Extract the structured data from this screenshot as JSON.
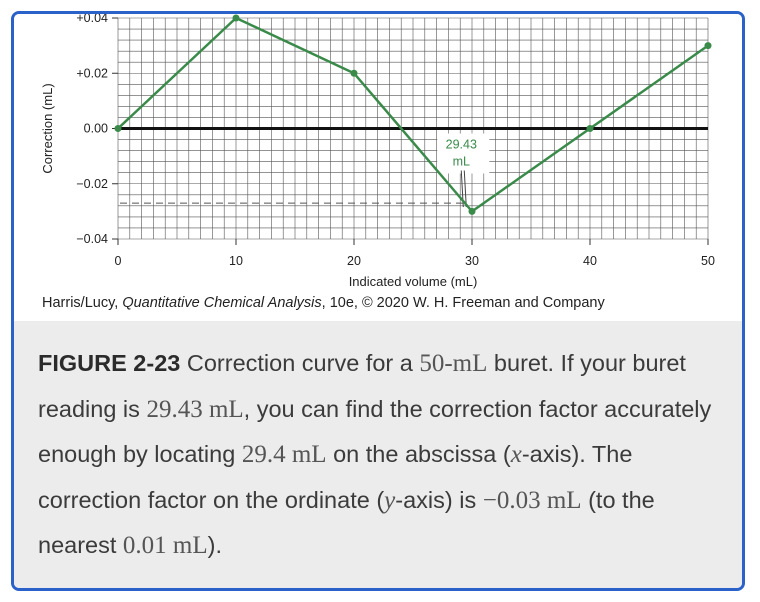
{
  "chart_data": {
    "type": "line",
    "x": [
      0,
      10,
      20,
      30,
      40,
      50
    ],
    "y": [
      0.0,
      0.04,
      0.02,
      -0.03,
      0.0,
      0.03
    ],
    "xlabel": "Indicated volume (mL)",
    "ylabel": "Correction (mL)",
    "xlim": [
      0,
      50
    ],
    "ylim": [
      -0.04,
      0.04
    ],
    "x_ticks": [
      "0",
      "10",
      "20",
      "30",
      "40",
      "50"
    ],
    "y_ticks": [
      "+0.04",
      "+0.02",
      "0.00",
      "−0.02",
      "−0.04"
    ],
    "grid": true,
    "line_color": "#3a8a4a",
    "axis_color": "#111111",
    "annotation": {
      "text_line1": "29.43",
      "text_line2": "mL",
      "x": 29.43,
      "y_dashed": -0.027,
      "color": "#3a8a4a"
    }
  },
  "credit": {
    "prefix": "Harris/Lucy, ",
    "title": "Quantitative Chemical Analysis",
    "suffix": ", 10e, © 2020 W. H. Freeman and Company"
  },
  "caption": {
    "label": "FIGURE 2-23",
    "t1": " Correction curve for a ",
    "m1": "50-mL",
    "t2": " buret. If your buret reading is ",
    "m2": "29.43 mL",
    "t3": ", you can find the correction factor accurately enough by locating ",
    "m3": "29.4 mL",
    "t4": " on the abscissa (",
    "m4": "x",
    "t5": "-axis). The correction factor on the ordinate (",
    "m5": "y",
    "t6": "-axis) is ",
    "m6": "−0.03 mL",
    "t7": " (to the nearest ",
    "m7": "0.01 mL",
    "t8": ")."
  },
  "colors": {
    "frame_border": "#2a62c9",
    "caption_bg": "#ececec"
  }
}
